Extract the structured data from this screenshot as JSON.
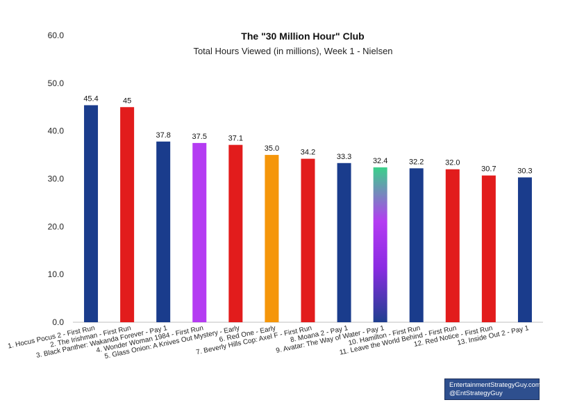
{
  "chart_data": {
    "type": "bar",
    "title": "The \"30 Million Hour\" Club",
    "subtitle": "Total Hours Viewed (in millions), Week 1 - Nielsen",
    "xlabel": "",
    "ylabel": "",
    "ylim": [
      0,
      60
    ],
    "yticks": [
      "0.0",
      "10.0",
      "20.0",
      "30.0",
      "40.0",
      "50.0",
      "60.0"
    ],
    "grid": false,
    "legend": "none",
    "categories": [
      "1. Hocus Pocus 2 - First Run",
      "2. The Irishman - First Run",
      "3. Black Panther: Wakanda Forever - Pay 1",
      "4. Wonder Woman 1984 - First Run",
      "5. Glass Onion: A Knives Out Mystery - Early",
      "6. Red One - Early",
      "7. Beverly Hills Cop: Axel F - First Run",
      "8. Moana 2 - Pay 1",
      "9. Avatar: The Way of Water - Pay 1",
      "10. Hamilton - First Run",
      "11. Leave the World Behind - First Run",
      "12. Red Notice - First Run",
      "13. Inside Out 2 - Pay 1"
    ],
    "values": [
      45.4,
      45,
      37.8,
      37.5,
      37.1,
      35.0,
      34.2,
      33.3,
      32.4,
      32.2,
      32.0,
      30.7,
      30.3
    ],
    "data_labels": [
      "45.4",
      "45",
      "37.8",
      "37.5",
      "37.1",
      "35.0",
      "34.2",
      "33.3",
      "32.4",
      "32.2",
      "32.0",
      "30.7",
      "30.3"
    ],
    "bar_colors": [
      "#1a3c8c",
      "#e21c1c",
      "#1a3c8c",
      "#b43cf2",
      "#e21c1c",
      "#f5960a",
      "#e21c1c",
      "#1a3c8c",
      "gradient",
      "#1a3c8c",
      "#e21c1c",
      "#e21c1c",
      "#1a3c8c"
    ],
    "gradient_colors": [
      "#1f3f8f",
      "#8a2be2",
      "#b43cf2",
      "#3ad18a"
    ]
  },
  "credit": {
    "line1": "EntertainmentStrategyGuy.com",
    "line2": "@EntStrategyGuy"
  }
}
